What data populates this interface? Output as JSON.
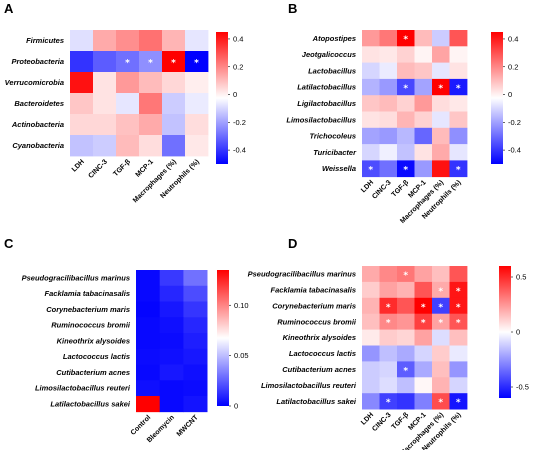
{
  "chart_data": [
    {
      "type": "heatmap",
      "panel": "A",
      "rows": [
        "Firmicutes",
        "Proteobacteria",
        "Verrucomicrobia",
        "Bacteroidetes",
        "Actinobacteria",
        "Cyanobacteria"
      ],
      "columns": [
        "LDH",
        "CINC-3",
        "TGF-β",
        "MCP-1",
        "Macrophages (%)",
        "Neutrophils (%)"
      ],
      "values": [
        [
          -0.06,
          0.15,
          0.2,
          0.25,
          0.13,
          -0.05
        ],
        [
          -0.4,
          -0.32,
          -0.28,
          -0.22,
          0.45,
          -0.5
        ],
        [
          0.42,
          0.05,
          0.18,
          0.12,
          0.07,
          0.03
        ],
        [
          0.1,
          0.05,
          -0.05,
          0.24,
          -0.1,
          -0.04
        ],
        [
          0.07,
          0.07,
          0.11,
          0.15,
          -0.12,
          0.06
        ],
        [
          -0.12,
          -0.1,
          0.12,
          0.06,
          -0.28,
          0.04
        ]
      ],
      "stars": [
        [
          1,
          2
        ],
        [
          1,
          3
        ],
        [
          1,
          4
        ],
        [
          1,
          5
        ]
      ],
      "colorbar": {
        "min": -0.5,
        "max": 0.45,
        "ticks": [
          0.4,
          0.2,
          0,
          -0.2,
          -0.4
        ],
        "tick_labels": [
          "0.4",
          "0.2",
          "0",
          "-0.2",
          "-0.4"
        ]
      },
      "colors": {
        "low": "#0000ff",
        "mid": "#ffffff",
        "high": "#ff0000"
      }
    },
    {
      "type": "heatmap",
      "panel": "B",
      "rows": [
        "Atopostipes",
        "Jeotgalicoccus",
        "Lactobacillus",
        "Latilactobacillus",
        "Ligilactobacillus",
        "Limosilactobacillus",
        "Trichocoleus",
        "Turicibacter",
        "Weissella"
      ],
      "columns": [
        "LDH",
        "CINC-3",
        "TGF-β",
        "MCP-1",
        "Macrophages (%)",
        "Neutrophils (%)"
      ],
      "values": [
        [
          0.18,
          0.24,
          0.47,
          0.12,
          -0.1,
          0.3
        ],
        [
          0.05,
          0.04,
          0.08,
          0.02,
          0.16,
          0.02
        ],
        [
          -0.08,
          -0.04,
          0.12,
          0.1,
          -0.05,
          0.05
        ],
        [
          -0.15,
          -0.2,
          -0.36,
          -0.18,
          0.5,
          -0.45
        ],
        [
          0.1,
          0.12,
          0.08,
          0.18,
          0.06,
          0.04
        ],
        [
          0.05,
          0.06,
          0.13,
          0.08,
          -0.05,
          0.1
        ],
        [
          -0.18,
          -0.2,
          -0.14,
          -0.3,
          0.12,
          -0.22
        ],
        [
          -0.08,
          -0.03,
          -0.12,
          0.05,
          0.15,
          -0.05
        ],
        [
          -0.35,
          -0.28,
          -0.48,
          -0.2,
          0.42,
          -0.4
        ]
      ],
      "stars": [
        [
          0,
          2
        ],
        [
          3,
          2
        ],
        [
          3,
          4
        ],
        [
          3,
          5
        ],
        [
          8,
          0
        ],
        [
          8,
          2
        ],
        [
          8,
          5
        ]
      ],
      "colorbar": {
        "min": -0.5,
        "max": 0.45,
        "ticks": [
          0.4,
          0.2,
          0,
          -0.2,
          -0.4
        ],
        "tick_labels": [
          "0.4",
          "0.2",
          "0",
          "-0.2",
          "-0.4"
        ]
      },
      "colors": {
        "low": "#0000ff",
        "mid": "#ffffff",
        "high": "#ff0000"
      }
    },
    {
      "type": "heatmap",
      "panel": "C",
      "rows": [
        "Pseudogracilibacillus marinus",
        "Facklamia tabacinasalis",
        "Corynebacterium maris",
        "Ruminococcus bromii",
        "Kineothrix alysoides",
        "Lactococcus lactis",
        "Cutibacterium acnes",
        "Limosilactobacillus reuteri",
        "Latilactobacillus sakei"
      ],
      "columns": [
        "Control",
        "Bleomycin",
        "MWCNT"
      ],
      "values": [
        [
          0.002,
          0.015,
          0.03
        ],
        [
          0.002,
          0.01,
          0.02
        ],
        [
          0.001,
          0.006,
          0.014
        ],
        [
          0.002,
          0.004,
          0.01
        ],
        [
          0.002,
          0.003,
          0.008
        ],
        [
          0.003,
          0.004,
          0.006
        ],
        [
          0.002,
          0.006,
          0.004
        ],
        [
          0.004,
          0.002,
          0.003
        ],
        [
          0.135,
          0.002,
          0.005
        ]
      ],
      "stars": [],
      "colorbar": {
        "min": 0,
        "max": 0.135,
        "ticks": [
          0.1,
          0.05,
          0
        ],
        "tick_labels": [
          "0.10",
          "0.05",
          "0"
        ]
      },
      "colors": {
        "low": "#0000ff",
        "mid": "#ffffff",
        "high": "#ff0000"
      }
    },
    {
      "type": "heatmap",
      "panel": "D",
      "rows": [
        "Pseudogracilibacillus marinus",
        "Facklamia tabacinasalis",
        "Corynebacterium maris",
        "Ruminococcus bromii",
        "Kineothrix alysoides",
        "Lactococcus lactis",
        "Cutibacterium acnes",
        "Limosilactobacillus reuteri",
        "Latilactobacillus sakei"
      ],
      "columns": [
        "LDH",
        "CINC-3",
        "TGF-β",
        "MCP-1",
        "Macrophages (%)",
        "Neutrophils (%)"
      ],
      "values": [
        [
          0.2,
          0.28,
          0.32,
          0.22,
          0.15,
          0.4
        ],
        [
          0.12,
          0.22,
          0.18,
          0.4,
          0.2,
          0.55
        ],
        [
          0.18,
          0.5,
          0.4,
          0.6,
          -0.45,
          0.55
        ],
        [
          0.15,
          0.28,
          0.25,
          0.45,
          0.22,
          0.4
        ],
        [
          0.05,
          0.12,
          0.1,
          0.22,
          -0.08,
          0.15
        ],
        [
          -0.25,
          -0.15,
          -0.2,
          -0.1,
          0.12,
          -0.05
        ],
        [
          -0.12,
          -0.1,
          -0.38,
          -0.2,
          0.15,
          -0.25
        ],
        [
          -0.12,
          -0.08,
          -0.15,
          0.02,
          0.18,
          -0.1
        ],
        [
          -0.28,
          -0.45,
          -0.48,
          -0.3,
          0.42,
          -0.55
        ]
      ],
      "stars": [
        [
          0,
          2
        ],
        [
          1,
          4
        ],
        [
          1,
          5
        ],
        [
          2,
          1
        ],
        [
          2,
          3
        ],
        [
          2,
          4
        ],
        [
          2,
          5
        ],
        [
          3,
          1
        ],
        [
          3,
          3
        ],
        [
          3,
          4
        ],
        [
          3,
          5
        ],
        [
          6,
          2
        ],
        [
          8,
          1
        ],
        [
          8,
          4
        ],
        [
          8,
          5
        ]
      ],
      "colorbar": {
        "min": -0.6,
        "max": 0.6,
        "ticks": [
          0.5,
          0,
          -0.5
        ],
        "tick_labels": [
          "0.5",
          "0",
          "-0.5"
        ]
      },
      "colors": {
        "low": "#0000ff",
        "mid": "#ffffff",
        "high": "#ff0000"
      }
    }
  ]
}
